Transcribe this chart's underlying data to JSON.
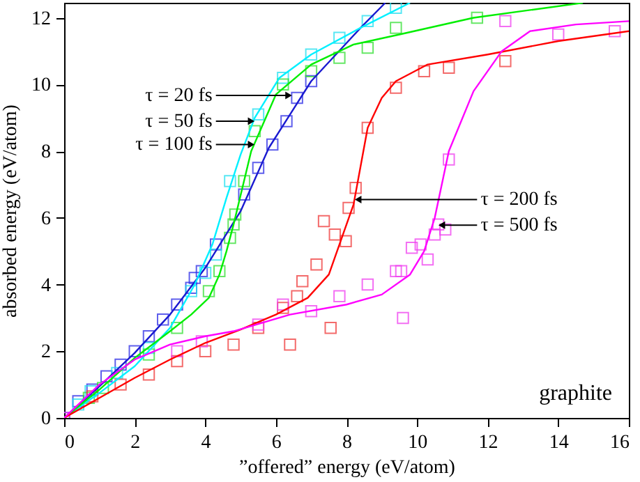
{
  "chart_data": {
    "type": "scatter",
    "xlabel": "”offered” energy (eV/atom)",
    "ylabel": "absorbed energy (eV/atom)",
    "xlim": [
      0,
      16
    ],
    "xticks": [
      0,
      2,
      4,
      6,
      8,
      10,
      12,
      14,
      16
    ],
    "ylim": [
      0,
      12.45
    ],
    "yticks": [
      0,
      2,
      4,
      6,
      8,
      10,
      12
    ],
    "grid": false,
    "annotations": [
      "graphite",
      {
        "text": "τ = 20 fs",
        "x": 6.36,
        "y": 9.67
      },
      {
        "text": "τ = 50 fs",
        "x": 5.3,
        "y": 8.9
      },
      {
        "text": "τ = 100 fs",
        "x": 5.3,
        "y": 8.2
      },
      {
        "text": "τ = 200 fs",
        "x": 8.33,
        "y": 6.55
      },
      {
        "text": "τ = 500 fs",
        "x": 10.7,
        "y": 5.78
      }
    ],
    "series": [
      {
        "marker": "square",
        "color": "#2a2ae6",
        "x": [
          0,
          0.4,
          0.8,
          1.2,
          1.6,
          2.0,
          2.4,
          2.8,
          3.2,
          3.6,
          3.7,
          3.9,
          4.3,
          5.1,
          5.5,
          5.9,
          6.3,
          6.6,
          7.0
        ],
        "values": [
          0,
          0.5,
          0.85,
          1.25,
          1.6,
          2.0,
          2.45,
          2.95,
          3.4,
          3.9,
          4.2,
          4.4,
          5.2,
          6.7,
          7.5,
          8.2,
          8.9,
          9.6,
          10.1
        ]
      },
      {
        "marker": "square",
        "color": "#22e0f0",
        "x": [
          0.4,
          0.75,
          1.5,
          2.4,
          3.6,
          4.0,
          4.3,
          4.7,
          5.5,
          6.2,
          7.0,
          7.8,
          8.6,
          9.4
        ],
        "values": [
          0.4,
          0.8,
          1.35,
          2.1,
          3.8,
          4.35,
          4.9,
          7.1,
          9.1,
          10.2,
          10.9,
          11.4,
          11.9,
          12.3
        ]
      },
      {
        "marker": "square",
        "color": "#33e033",
        "x": [
          0.7,
          1.1,
          2.4,
          3.2,
          4.1,
          4.4,
          4.7,
          4.8,
          4.85,
          5.1,
          5.4,
          6.2,
          7.0,
          7.8,
          8.6,
          9.4,
          11.7
        ],
        "values": [
          0.6,
          0.9,
          1.9,
          2.7,
          3.8,
          4.4,
          5.4,
          5.8,
          6.1,
          7.1,
          8.6,
          10.0,
          10.4,
          10.8,
          11.1,
          11.7,
          12.0
        ]
      },
      {
        "marker": "square",
        "color": "#f03a3a",
        "x": [
          0.8,
          1.6,
          2.4,
          3.2,
          4.0,
          4.8,
          5.5,
          6.4,
          6.2,
          6.6,
          6.75,
          7.15,
          7.55,
          7.67,
          7.36,
          7.98,
          8.06,
          8.26,
          8.6,
          9.4,
          10.2,
          10.9,
          12.5
        ],
        "values": [
          0.65,
          1.0,
          1.3,
          1.7,
          2.0,
          2.2,
          2.7,
          2.2,
          3.3,
          3.65,
          4.1,
          4.6,
          2.7,
          5.5,
          5.9,
          5.3,
          6.3,
          6.9,
          8.7,
          9.9,
          10.4,
          10.5,
          10.7
        ]
      },
      {
        "marker": "square",
        "color": "#f040f0",
        "x": [
          0,
          3.2,
          3.9,
          5.5,
          6.2,
          7.0,
          7.8,
          8.6,
          9.4,
          9.55,
          9.6,
          9.85,
          10.1,
          10.3,
          10.5,
          10.6,
          10.8,
          10.9,
          12.5,
          14.0,
          15.6
        ],
        "values": [
          0,
          2.0,
          2.3,
          2.8,
          3.4,
          3.2,
          3.65,
          4.0,
          4.4,
          4.4,
          3.0,
          5.1,
          5.2,
          4.75,
          5.5,
          5.8,
          5.65,
          7.75,
          11.9,
          11.5,
          11.6
        ]
      },
      {
        "type": "line",
        "color": "#1a1ad0",
        "x": [
          0,
          1,
          2,
          3,
          4,
          5,
          5.8,
          6.4,
          7,
          7.7,
          8.4,
          9.1
        ],
        "values": [
          0,
          0.95,
          1.95,
          3.1,
          4.5,
          6.2,
          8.1,
          9.1,
          10.1,
          10.9,
          11.7,
          12.45
        ]
      },
      {
        "type": "line",
        "color": "#00f0ff",
        "x": [
          0,
          1,
          2,
          3,
          3.7,
          4.2,
          4.6,
          5,
          5.4,
          6.1,
          7,
          8.4,
          9.8
        ],
        "values": [
          0,
          0.75,
          1.55,
          2.7,
          4.0,
          5.2,
          6.6,
          7.9,
          9.0,
          10.2,
          10.9,
          11.7,
          12.45
        ]
      },
      {
        "type": "line",
        "color": "#00ee00",
        "x": [
          0,
          1,
          2,
          3,
          3.6,
          4.1,
          4.4,
          4.6,
          4.8,
          5.3,
          6,
          7,
          8.2,
          9.5,
          11.6,
          14.7
        ],
        "values": [
          0,
          0.85,
          1.8,
          2.6,
          3.1,
          3.6,
          4.3,
          5.0,
          5.8,
          8.0,
          9.7,
          10.6,
          11.2,
          11.5,
          12.0,
          12.45
        ]
      },
      {
        "type": "line",
        "color": "#ff0000",
        "x": [
          0,
          1,
          2,
          3,
          4,
          5,
          6,
          6.9,
          7.5,
          7.9,
          8.2,
          8.6,
          9,
          9.4,
          10.3,
          12,
          14,
          16
        ],
        "values": [
          0,
          0.6,
          1.2,
          1.75,
          2.25,
          2.65,
          3.1,
          3.6,
          4.3,
          5.5,
          6.4,
          8.7,
          9.6,
          10.1,
          10.6,
          10.9,
          11.3,
          11.6
        ]
      },
      {
        "type": "line",
        "color": "#ff00ff",
        "x": [
          0,
          1,
          2,
          3,
          4,
          4.8,
          6.4,
          8,
          9,
          9.8,
          10.2,
          10.5,
          10.9,
          11.6,
          12.4,
          13.2,
          14.5,
          16
        ],
        "values": [
          0,
          1.0,
          1.75,
          2.2,
          2.45,
          2.6,
          3.1,
          3.4,
          3.7,
          4.3,
          5.0,
          6.0,
          8.0,
          9.8,
          11.0,
          11.6,
          11.8,
          11.9
        ]
      }
    ]
  }
}
